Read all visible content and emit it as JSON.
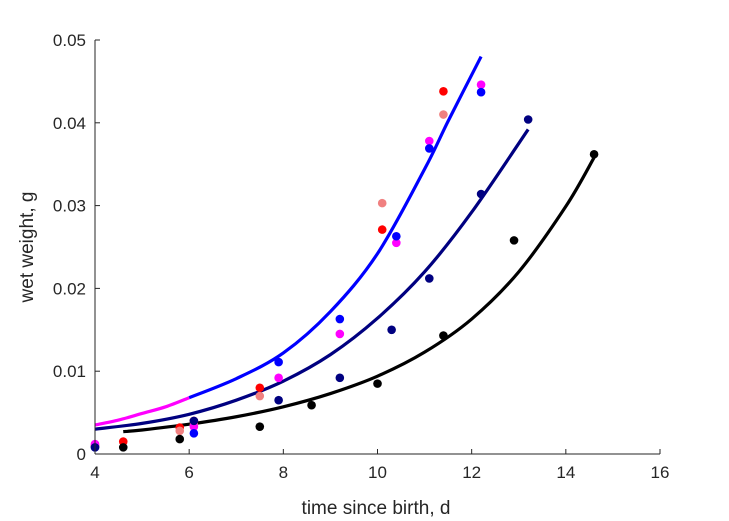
{
  "chart_data": {
    "type": "scatter",
    "xlabel": "time since birth, d",
    "ylabel": "wet weight, g",
    "xlim": [
      4,
      16
    ],
    "ylim": [
      0,
      0.05
    ],
    "xticks": [
      4,
      6,
      8,
      10,
      12,
      14,
      16
    ],
    "yticks": [
      "0",
      "0.01",
      "0.02",
      "0.03",
      "0.04",
      "0.05"
    ],
    "grid": false,
    "legend": "none",
    "series": [
      {
        "color": "#ff0000",
        "points": [
          [
            4.0,
            0.001
          ],
          [
            4.6,
            0.0015
          ],
          [
            5.8,
            0.0032
          ],
          [
            6.1,
            0.004
          ],
          [
            7.5,
            0.008
          ],
          [
            10.1,
            0.0271
          ],
          [
            11.4,
            0.0438
          ]
        ]
      },
      {
        "color": "#f08080",
        "points": [
          [
            4.0,
            0.001
          ],
          [
            5.8,
            0.0028
          ],
          [
            6.1,
            0.0035
          ],
          [
            7.5,
            0.007
          ],
          [
            10.1,
            0.0303
          ],
          [
            11.4,
            0.041
          ]
        ]
      },
      {
        "color": "#ff00ff",
        "points": [
          [
            4.0,
            0.0012
          ],
          [
            6.1,
            0.0033
          ],
          [
            7.9,
            0.0092
          ],
          [
            9.2,
            0.0145
          ],
          [
            10.4,
            0.0255
          ],
          [
            11.1,
            0.0378
          ],
          [
            12.2,
            0.0446
          ]
        ]
      },
      {
        "color": "#0000ff",
        "points": [
          [
            4.0,
            0.0008
          ],
          [
            6.1,
            0.0025
          ],
          [
            7.9,
            0.0111
          ],
          [
            9.2,
            0.0163
          ],
          [
            10.4,
            0.0263
          ],
          [
            11.1,
            0.0369
          ],
          [
            12.2,
            0.0437
          ]
        ]
      },
      {
        "color": "#000080",
        "points": [
          [
            4.0,
            0.0008
          ],
          [
            6.1,
            0.004
          ],
          [
            7.9,
            0.0065
          ],
          [
            9.2,
            0.0092
          ],
          [
            10.3,
            0.015
          ],
          [
            11.1,
            0.0212
          ],
          [
            12.2,
            0.0314
          ],
          [
            13.2,
            0.0404
          ]
        ]
      },
      {
        "color": "#000000",
        "points": [
          [
            4.6,
            0.0008
          ],
          [
            5.8,
            0.0018
          ],
          [
            7.5,
            0.0033
          ],
          [
            8.6,
            0.0059
          ],
          [
            10.0,
            0.0085
          ],
          [
            11.4,
            0.0143
          ],
          [
            12.9,
            0.0258
          ],
          [
            14.6,
            0.0362
          ]
        ]
      }
    ],
    "curves": [
      {
        "color": "#ff00ff",
        "x": [
          4.0,
          4.5,
          5.0,
          5.5,
          6.0
        ],
        "y": [
          0.0035,
          0.0041,
          0.0049,
          0.0057,
          0.0068
        ]
      },
      {
        "color": "#0000ff",
        "x": [
          6.0,
          7.0,
          8.0,
          9.0,
          10.0,
          11.0,
          11.5,
          12.2
        ],
        "y": [
          0.0068,
          0.0091,
          0.0122,
          0.0172,
          0.0242,
          0.0344,
          0.0402,
          0.048
        ]
      },
      {
        "color": "#000080",
        "x": [
          4.0,
          5.0,
          6.0,
          7.0,
          8.0,
          9.0,
          10.0,
          11.0,
          12.0,
          13.2
        ],
        "y": [
          0.003,
          0.0037,
          0.0048,
          0.0065,
          0.0088,
          0.012,
          0.0164,
          0.022,
          0.0292,
          0.0392
        ]
      },
      {
        "color": "#000000",
        "x": [
          4.6,
          5.0,
          6.0,
          7.0,
          8.0,
          9.0,
          10.0,
          11.0,
          12.0,
          13.0,
          14.0,
          14.6
        ],
        "y": [
          0.0027,
          0.0029,
          0.0036,
          0.0045,
          0.0057,
          0.0073,
          0.0094,
          0.0123,
          0.0163,
          0.022,
          0.0299,
          0.0358
        ]
      }
    ]
  }
}
